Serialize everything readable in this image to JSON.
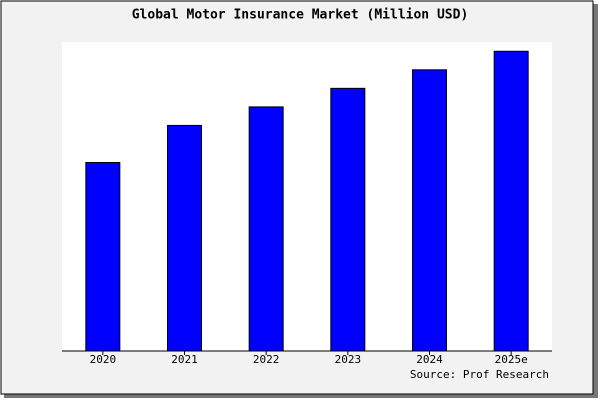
{
  "chart_data": {
    "type": "bar",
    "title": "Global Motor Insurance Market (Million USD)",
    "categories": [
      "2020",
      "2021",
      "2022",
      "2023",
      "2024",
      "2025e"
    ],
    "values": [
      61,
      73,
      79,
      85,
      91,
      97
    ],
    "color": "#0000ff",
    "ylim": [
      0,
      100
    ],
    "source": "Source: Prof Research"
  }
}
